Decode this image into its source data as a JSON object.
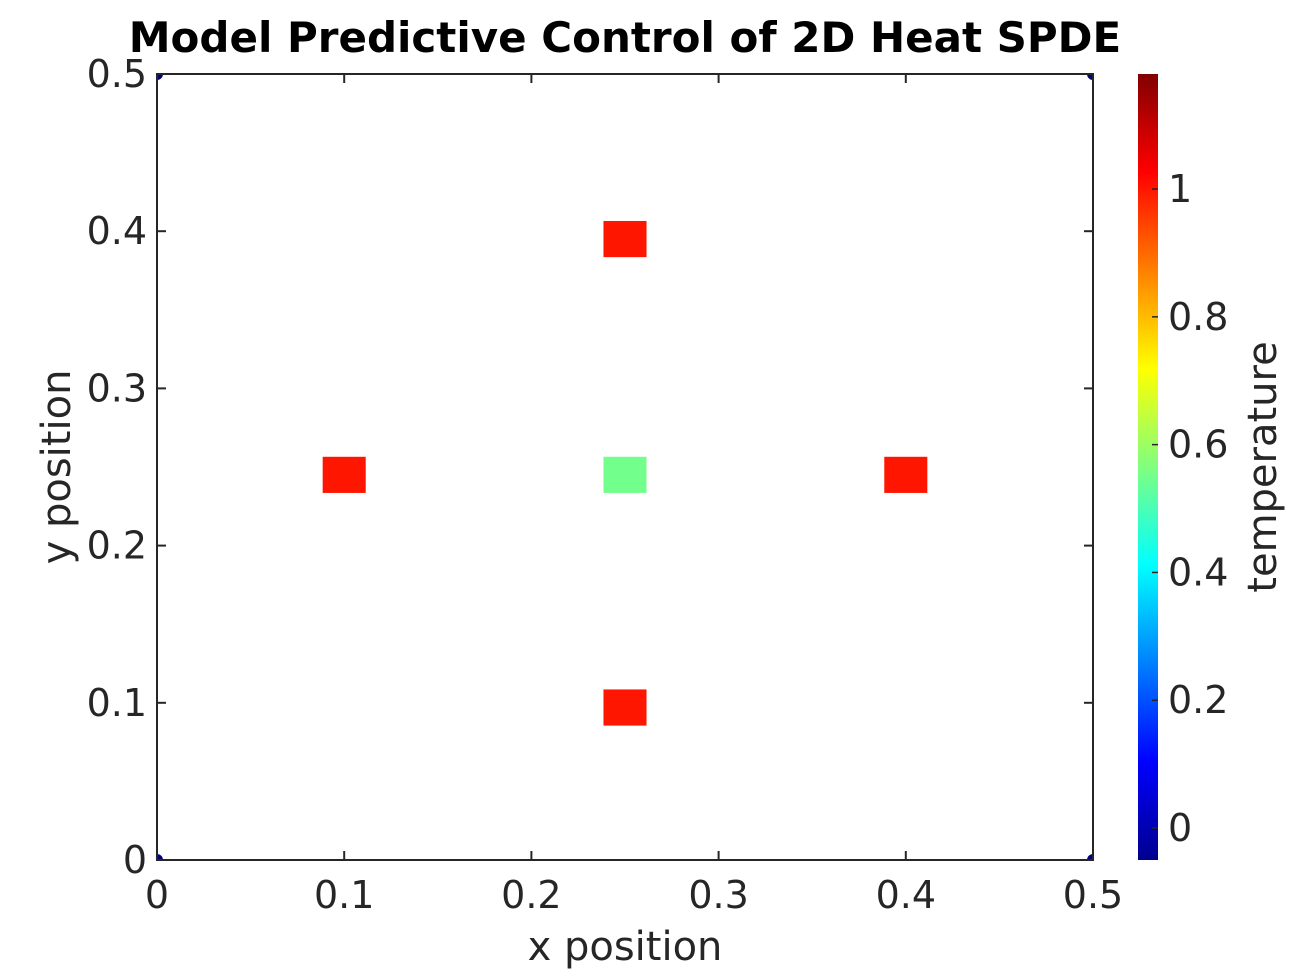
{
  "chart_data": {
    "type": "heatmap",
    "title": "Model Predictive Control of 2D Heat SPDE",
    "xlabel": "x position",
    "ylabel": "y position",
    "colorbar_label": "temperature",
    "xlim": [
      0,
      0.5
    ],
    "ylim": [
      0,
      0.5
    ],
    "color_range": [
      -0.05,
      1.18
    ],
    "colormap": "jet",
    "background_color": "#ffffff",
    "x_ticks": [
      {
        "value": 0,
        "label": "0"
      },
      {
        "value": 0.1,
        "label": "0.1"
      },
      {
        "value": 0.2,
        "label": "0.2"
      },
      {
        "value": 0.3,
        "label": "0.3"
      },
      {
        "value": 0.4,
        "label": "0.4"
      },
      {
        "value": 0.5,
        "label": "0.5"
      }
    ],
    "y_ticks": [
      {
        "value": 0,
        "label": "0"
      },
      {
        "value": 0.1,
        "label": "0.1"
      },
      {
        "value": 0.2,
        "label": "0.2"
      },
      {
        "value": 0.3,
        "label": "0.3"
      },
      {
        "value": 0.4,
        "label": "0.4"
      },
      {
        "value": 0.5,
        "label": "0.5"
      }
    ],
    "colorbar_ticks": [
      {
        "value": 0,
        "label": "0"
      },
      {
        "value": 0.2,
        "label": "0.2"
      },
      {
        "value": 0.4,
        "label": "0.4"
      },
      {
        "value": 0.6,
        "label": "0.6"
      },
      {
        "value": 0.8,
        "label": "0.8"
      },
      {
        "value": 1,
        "label": "1"
      }
    ],
    "cells": [
      {
        "x": 0.25,
        "y": 0.395,
        "value": 1.0
      },
      {
        "x": 0.1,
        "y": 0.245,
        "value": 1.0
      },
      {
        "x": 0.25,
        "y": 0.245,
        "value": 0.55
      },
      {
        "x": 0.4,
        "y": 0.245,
        "value": 1.0
      },
      {
        "x": 0.25,
        "y": 0.097,
        "value": 1.0
      }
    ],
    "cell_width": 0.023,
    "cell_height": 0.023,
    "corner_values": [
      {
        "x": 0,
        "y": 0,
        "value": -0.05
      },
      {
        "x": 0.5,
        "y": 0,
        "value": -0.05
      },
      {
        "x": 0,
        "y": 0.5,
        "value": -0.05
      },
      {
        "x": 0.5,
        "y": 0.5,
        "value": -0.05
      }
    ]
  }
}
